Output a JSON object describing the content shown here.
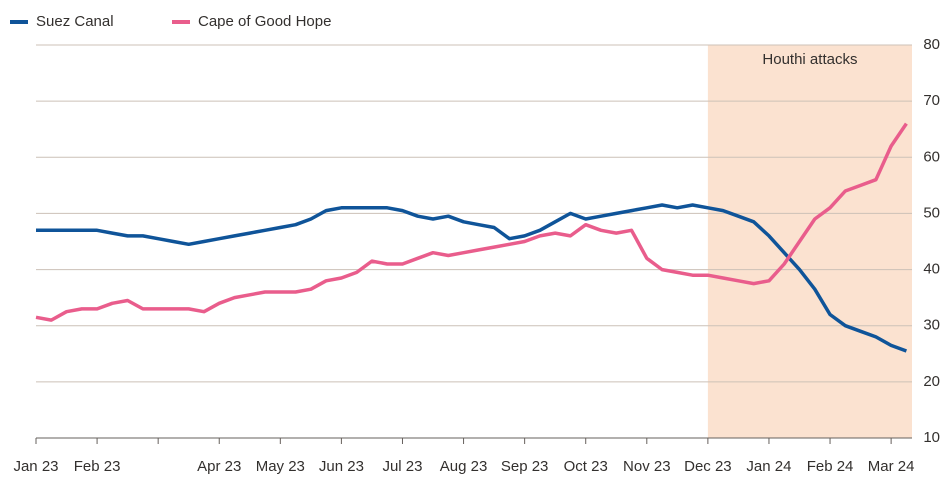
{
  "chart_data": {
    "type": "line",
    "categories": [
      "Jan 23",
      null,
      null,
      null,
      "Feb 23",
      null,
      null,
      null,
      null,
      null,
      null,
      null,
      "Apr 23",
      null,
      null,
      null,
      "May 23",
      null,
      null,
      null,
      "Jun 23",
      null,
      null,
      null,
      "Jul 23",
      null,
      null,
      null,
      "Aug 23",
      null,
      null,
      null,
      "Sep 23",
      null,
      null,
      null,
      "Oct 23",
      null,
      null,
      null,
      "Nov 23",
      null,
      null,
      null,
      "Dec 23",
      null,
      null,
      null,
      "Jan 24",
      null,
      null,
      null,
      "Feb 24",
      null,
      null,
      null,
      "Mar 24",
      null
    ],
    "series": [
      {
        "name": "Suez Canal",
        "color": "#0f5499",
        "values": [
          47,
          47,
          47,
          47,
          47,
          46.5,
          46,
          46,
          45.5,
          45,
          44.5,
          45,
          45.5,
          46,
          46.5,
          47,
          47.5,
          48,
          49,
          50.5,
          51,
          51,
          51,
          51,
          50.5,
          49.5,
          49,
          49.5,
          48.5,
          48,
          47.5,
          45.5,
          46,
          47,
          48.5,
          50,
          49,
          49.5,
          50,
          50.5,
          51,
          51.5,
          51,
          51.5,
          51,
          50.5,
          49.5,
          48.5,
          46,
          43,
          40,
          36.5,
          32,
          30,
          29,
          28,
          26.5,
          25.5
        ]
      },
      {
        "name": "Cape of Good Hope",
        "color": "#e95d8c",
        "values": [
          31.5,
          31,
          32.5,
          33,
          33,
          34,
          34.5,
          33,
          33,
          33,
          33,
          32.5,
          34,
          35,
          35.5,
          36,
          36,
          36,
          36.5,
          38,
          38.5,
          39.5,
          41.5,
          41,
          41,
          42,
          43,
          42.5,
          43,
          43.5,
          44,
          44.5,
          45,
          46,
          46.5,
          46,
          48,
          47,
          46.5,
          47,
          42,
          40,
          39.5,
          39,
          39,
          38.5,
          38,
          37.5,
          38,
          41,
          45,
          49,
          51,
          54,
          55,
          56,
          62,
          66
        ]
      }
    ],
    "shaded_region": {
      "label": "Houthi attacks",
      "start": "Dec 23"
    },
    "ylim": [
      10,
      80
    ],
    "yticks": [
      10,
      20,
      30,
      40,
      50,
      60,
      70,
      80
    ],
    "grid": true
  }
}
